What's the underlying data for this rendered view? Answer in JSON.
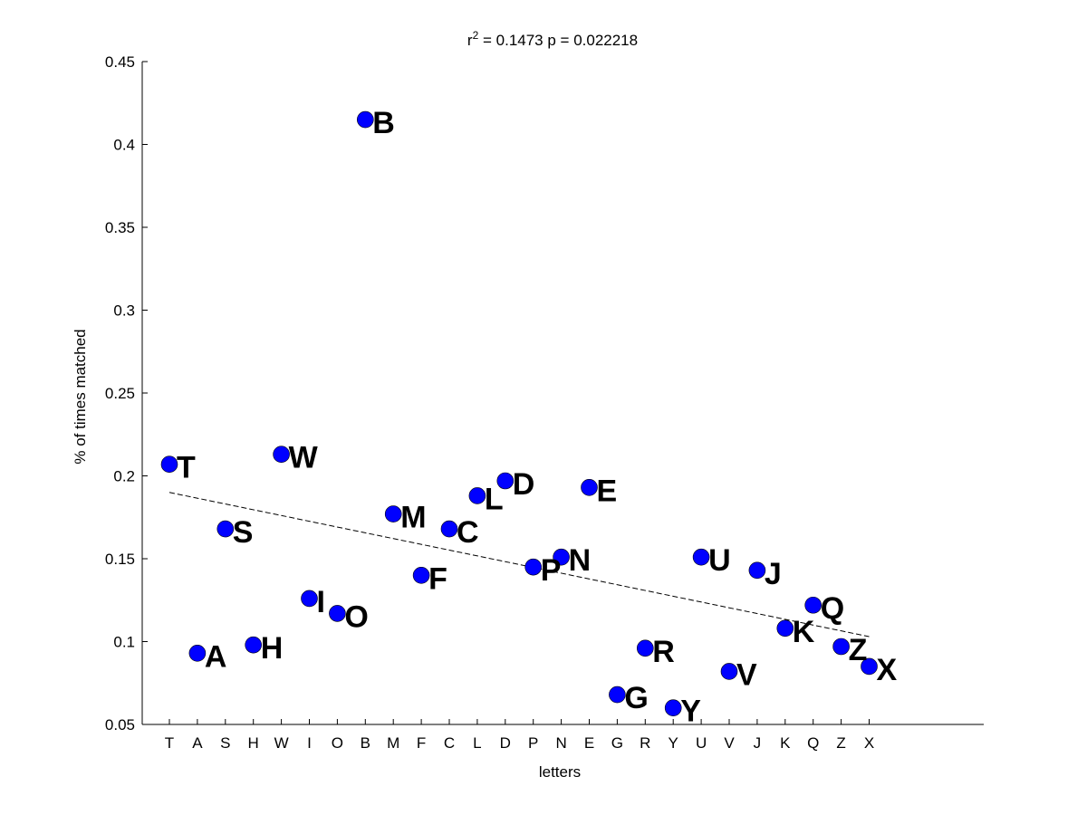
{
  "chart_data": {
    "type": "scatter",
    "title": {
      "prefix": "r",
      "superscript": "2",
      "suffix": " = 0.1473 p = 0.022218"
    },
    "xlabel": "letters",
    "ylabel": "% of times matched",
    "ylim": [
      0.05,
      0.45
    ],
    "yticks": [
      "0.05",
      "0.1",
      "0.15",
      "0.2",
      "0.25",
      "0.3",
      "0.35",
      "0.4",
      "0.45"
    ],
    "categories": [
      "T",
      "A",
      "S",
      "H",
      "W",
      "I",
      "O",
      "B",
      "M",
      "F",
      "C",
      "L",
      "D",
      "P",
      "N",
      "E",
      "G",
      "R",
      "Y",
      "U",
      "V",
      "J",
      "K",
      "Q",
      "Z",
      "X"
    ],
    "values": [
      0.207,
      0.093,
      0.168,
      0.098,
      0.213,
      0.126,
      0.117,
      0.415,
      0.177,
      0.14,
      0.168,
      0.188,
      0.197,
      0.145,
      0.151,
      0.193,
      0.068,
      0.096,
      0.06,
      0.151,
      0.082,
      0.143,
      0.108,
      0.122,
      0.097,
      0.085
    ],
    "trendline": {
      "start": 0.19,
      "end": 0.103,
      "style": "dashed"
    },
    "marker_color": "#0000ff",
    "grid": false
  }
}
